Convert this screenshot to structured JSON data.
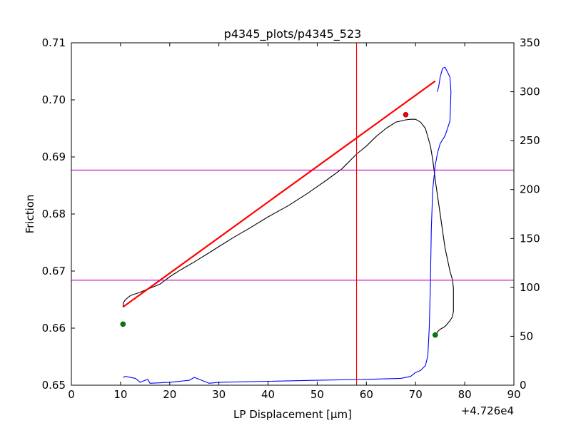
{
  "chart_data": {
    "type": "line",
    "title": "p4345_plots/p4345_523",
    "xlabel": "LP Displacement [μm]",
    "ylabel": "Friction",
    "x_offset_label": "+4.726e4",
    "xlim": [
      0,
      90
    ],
    "ylim": [
      0.65,
      0.71
    ],
    "y2lim": [
      0,
      350
    ],
    "x_ticks": [
      "0",
      "10",
      "20",
      "30",
      "40",
      "50",
      "60",
      "70",
      "80",
      "90"
    ],
    "y_ticks": [
      "0.65",
      "0.66",
      "0.67",
      "0.68",
      "0.69",
      "0.70",
      "0.71"
    ],
    "y2_ticks": [
      "0",
      "50",
      "100",
      "150",
      "200",
      "250",
      "300",
      "350"
    ],
    "grid": false,
    "colors": {
      "friction": "#000000",
      "fit": "#ff0000",
      "stiffness": "#0000ff",
      "hlines": "#bf00bf",
      "vline": "#ff0000",
      "start_end_points": "#008000",
      "peak_point": "#ff0000"
    },
    "series": [
      {
        "axis": "left",
        "color": "#000000",
        "x": [
          10.5,
          10.6,
          11,
          12,
          14,
          16,
          18,
          20,
          22,
          25,
          28,
          30,
          33,
          36,
          40,
          44,
          48,
          52,
          55,
          58,
          60,
          62,
          64,
          66,
          67,
          68,
          69,
          70,
          71,
          72,
          73,
          73.5,
          74,
          74.5,
          75,
          75.5,
          76,
          76.5,
          77,
          77.5,
          77.7,
          77.7,
          77.5,
          77,
          76.5,
          76,
          75,
          74.5,
          74.3
        ],
        "y": [
          0.6637,
          0.6645,
          0.665,
          0.6657,
          0.6663,
          0.667,
          0.6677,
          0.669,
          0.6701,
          0.6716,
          0.6732,
          0.6743,
          0.6759,
          0.6774,
          0.6795,
          0.6814,
          0.6836,
          0.686,
          0.6879,
          0.6905,
          0.6919,
          0.6936,
          0.695,
          0.6961,
          0.6963,
          0.6965,
          0.6966,
          0.6966,
          0.6961,
          0.695,
          0.692,
          0.6895,
          0.686,
          0.683,
          0.68,
          0.677,
          0.674,
          0.672,
          0.67,
          0.6685,
          0.667,
          0.663,
          0.662,
          0.6613,
          0.6608,
          0.6603,
          0.6598,
          0.6594,
          0.659
        ]
      },
      {
        "axis": "left",
        "color": "#ff0000",
        "x": [
          10.5,
          74
        ],
        "y": [
          0.6637,
          0.7033
        ]
      },
      {
        "axis": "right",
        "color": "#0000ff",
        "x": [
          10.5,
          11,
          13,
          14,
          15.5,
          16,
          20,
          24,
          25,
          27,
          28,
          30,
          40,
          50,
          60,
          67,
          69,
          70,
          71,
          72,
          72.5,
          72.8,
          73,
          73.2,
          73.5,
          73.8,
          74,
          74.5,
          75,
          76,
          77,
          77.2,
          77,
          76.5,
          76,
          75.5,
          75,
          74.7,
          74.4
        ],
        "y": [
          8,
          9,
          7,
          3,
          6,
          2,
          3,
          5,
          8,
          4,
          2,
          3,
          4,
          5,
          6,
          7,
          9,
          13,
          15,
          20,
          30,
          60,
          100,
          160,
          200,
          215,
          225,
          238,
          247,
          255,
          270,
          300,
          315,
          320,
          325,
          324,
          315,
          305,
          300
        ]
      }
    ],
    "hlines_left": [
      0.6877,
      0.6684
    ],
    "vlines": [
      58.0
    ],
    "markers": [
      {
        "x": 10.5,
        "y": 0.6607,
        "axis": "left",
        "color": "#008000"
      },
      {
        "x": 74.0,
        "y": 0.6588,
        "axis": "left",
        "color": "#008000"
      },
      {
        "x": 68.0,
        "y": 0.6974,
        "axis": "left",
        "color": "#ff0000"
      }
    ]
  }
}
